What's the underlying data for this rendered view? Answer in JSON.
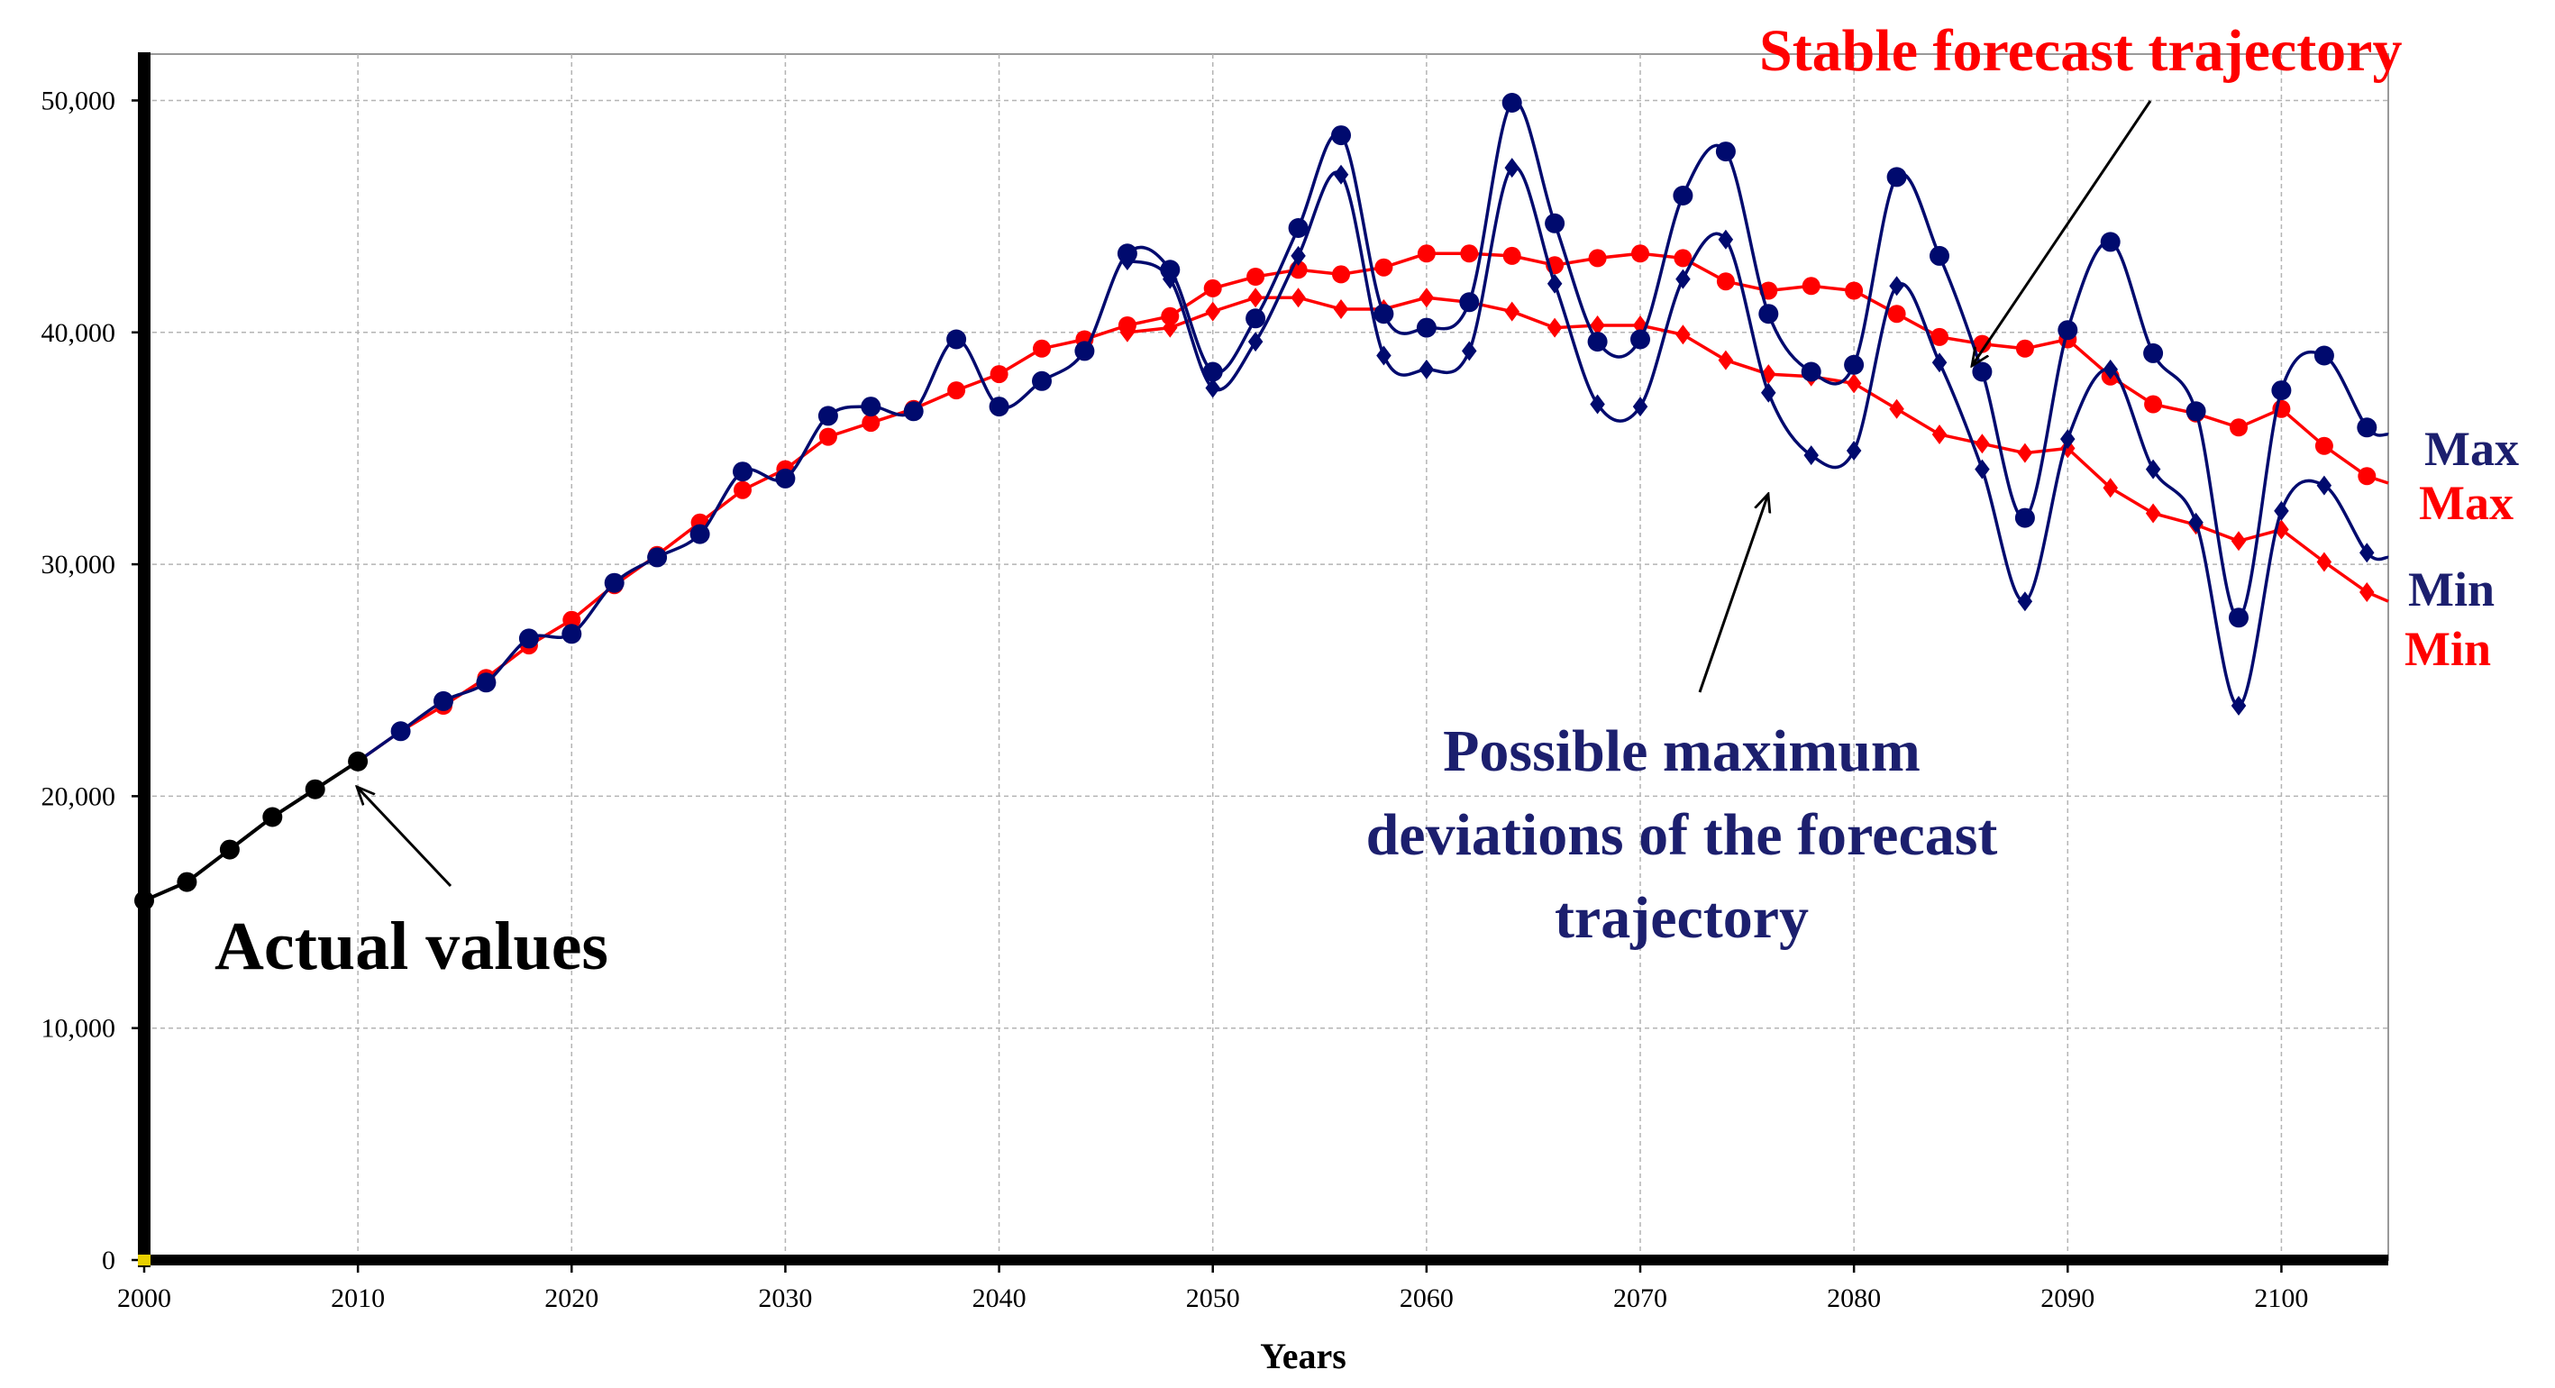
{
  "chart_data": {
    "type": "line",
    "title": "",
    "xlabel": "Years",
    "ylabel": "",
    "xlim": [
      2000,
      2105
    ],
    "ylim": [
      0,
      52000
    ],
    "grid": true,
    "x_ticks": [
      2000,
      2010,
      2020,
      2030,
      2040,
      2050,
      2060,
      2070,
      2080,
      2090,
      2100
    ],
    "x_tick_labels": [
      "2000",
      "2010",
      "2020",
      "2030",
      "2040",
      "2050",
      "2060",
      "2070",
      "2080",
      "2090",
      "2100"
    ],
    "y_ticks": [
      0,
      10000,
      20000,
      30000,
      40000,
      50000
    ],
    "y_tick_labels": [
      "0",
      "10,000",
      "20,000",
      "30,000",
      "40,000",
      "50,000"
    ],
    "series": [
      {
        "name": "Actual values",
        "color": "#000000",
        "marker": "circle",
        "curve": "straight",
        "x": [
          2000,
          2002,
          2004,
          2006,
          2008,
          2010
        ],
        "values": [
          15500,
          16300,
          17700,
          19100,
          20300,
          21500
        ]
      },
      {
        "name": "Stable forecast trajectory Max",
        "color": "#ff0000",
        "marker": "circle",
        "curve": "straight",
        "x": [
          2010,
          2012,
          2014,
          2016,
          2018,
          2020,
          2022,
          2024,
          2026,
          2028,
          2030,
          2032,
          2034,
          2036,
          2038,
          2040,
          2042,
          2044,
          2046,
          2048,
          2050,
          2052,
          2054,
          2056,
          2058,
          2060,
          2062,
          2064,
          2066,
          2068,
          2070,
          2072,
          2074,
          2076,
          2078,
          2080,
          2082,
          2084,
          2086,
          2088,
          2090,
          2092,
          2094,
          2096,
          2098,
          2100,
          2102,
          2104,
          2105
        ],
        "values": [
          21500,
          22800,
          23900,
          25100,
          26500,
          27600,
          29100,
          30400,
          31800,
          33200,
          34100,
          35500,
          36100,
          36700,
          37500,
          38200,
          39300,
          39700,
          40300,
          40700,
          41900,
          42400,
          42700,
          42500,
          42800,
          43400,
          43400,
          43300,
          42900,
          43200,
          43400,
          43200,
          42200,
          41800,
          42000,
          41800,
          40800,
          39800,
          39500,
          39300,
          39700,
          38100,
          36900,
          36500,
          35900,
          36700,
          35100,
          33800,
          33500
        ]
      },
      {
        "name": "Stable forecast trajectory Min",
        "color": "#ff0000",
        "marker": "diamond",
        "curve": "straight",
        "x": [
          2046,
          2048,
          2050,
          2052,
          2054,
          2056,
          2058,
          2060,
          2062,
          2064,
          2066,
          2068,
          2070,
          2072,
          2074,
          2076,
          2078,
          2080,
          2082,
          2084,
          2086,
          2088,
          2090,
          2092,
          2094,
          2096,
          2098,
          2100,
          2102,
          2104,
          2105
        ],
        "values": [
          40000,
          40200,
          40900,
          41500,
          41500,
          41000,
          41000,
          41500,
          41300,
          40900,
          40200,
          40300,
          40300,
          39900,
          38800,
          38200,
          38100,
          37800,
          36700,
          35600,
          35200,
          34800,
          35000,
          33300,
          32200,
          31700,
          31000,
          31500,
          30100,
          28800,
          28400
        ]
      },
      {
        "name": "Possible maximum deviations Max",
        "color": "#000a6e",
        "marker": "circle",
        "curve": "smooth",
        "x": [
          2010,
          2012,
          2014,
          2016,
          2018,
          2020,
          2022,
          2024,
          2026,
          2028,
          2030,
          2032,
          2034,
          2036,
          2038,
          2040,
          2042,
          2044,
          2046,
          2048,
          2050,
          2052,
          2054,
          2056,
          2058,
          2060,
          2062,
          2064,
          2066,
          2068,
          2070,
          2072,
          2074,
          2076,
          2078,
          2080,
          2082,
          2084,
          2086,
          2088,
          2090,
          2092,
          2094,
          2096,
          2098,
          2100,
          2102,
          2104,
          2105
        ],
        "values": [
          21500,
          22800,
          24100,
          24900,
          26800,
          27000,
          29200,
          30300,
          31300,
          34000,
          33700,
          36400,
          36800,
          36600,
          39700,
          36800,
          37900,
          39200,
          43400,
          42700,
          38300,
          40600,
          44500,
          48500,
          40800,
          40200,
          41300,
          49900,
          44700,
          39600,
          39700,
          45900,
          47800,
          40800,
          38300,
          38600,
          46700,
          43300,
          38300,
          32000,
          40100,
          43900,
          39100,
          36600,
          27700,
          37500,
          39000,
          35900,
          35600
        ]
      },
      {
        "name": "Possible maximum deviations Min",
        "color": "#000a6e",
        "marker": "diamond",
        "curve": "smooth",
        "x": [
          2046,
          2048,
          2050,
          2052,
          2054,
          2056,
          2058,
          2060,
          2062,
          2064,
          2066,
          2068,
          2070,
          2072,
          2074,
          2076,
          2078,
          2080,
          2082,
          2084,
          2086,
          2088,
          2090,
          2092,
          2094,
          2096,
          2098,
          2100,
          2102,
          2104,
          2105
        ],
        "values": [
          43100,
          42300,
          37600,
          39600,
          43300,
          46800,
          39000,
          38400,
          39200,
          47100,
          42100,
          36900,
          36800,
          42300,
          44000,
          37400,
          34700,
          34900,
          42000,
          38700,
          34100,
          28400,
          35400,
          38400,
          34100,
          31800,
          23900,
          32300,
          33400,
          30500,
          30300
        ]
      }
    ],
    "annotations": [
      {
        "text": "Actual values",
        "color": "#000000",
        "points_to": [
          2010,
          21500
        ]
      },
      {
        "text": "Stable forecast trajectory",
        "color": "#ff0000",
        "points_to": [
          2085,
          40000
        ]
      },
      {
        "lines": [
          "Possible maximum",
          "deviations of the forecast",
          "trajectory"
        ],
        "color": "#1c1f6e",
        "points_to": [
          2077,
          34500
        ]
      }
    ],
    "end_labels": [
      {
        "text": "Max",
        "color": "#1c1f6e"
      },
      {
        "text": "Max",
        "color": "#ff0000"
      },
      {
        "text": "Min",
        "color": "#1c1f6e"
      },
      {
        "text": "Min",
        "color": "#ff0000"
      }
    ]
  }
}
